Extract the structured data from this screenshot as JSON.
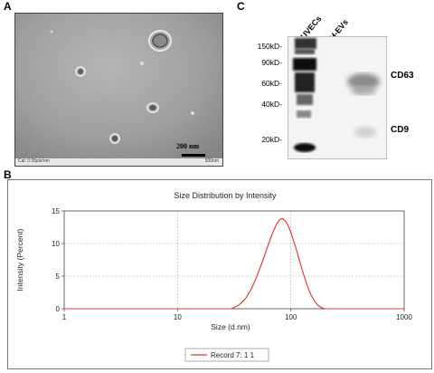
{
  "panels": {
    "a_letter": "A",
    "b_letter": "B",
    "c_letter": "C"
  },
  "micrograph": {
    "scale_bar_label": "200 nm",
    "footer_left": "Cal: 0.05pix/nm",
    "footer_right": "500nm"
  },
  "blot": {
    "lanes": [
      "HUVECs",
      "H-EVs"
    ],
    "markers": [
      "150kD-",
      "90kD-",
      "60kD-",
      "40kD-",
      "20kD-"
    ],
    "bands": [
      "CD63",
      "CD9"
    ]
  },
  "chart_data": {
    "type": "line",
    "title": "Size Distribution by Intensity",
    "xlabel": "Size (d.nm)",
    "ylabel": "Intensity (Percent)",
    "x_scale": "log",
    "xlim": [
      1,
      1000
    ],
    "ylim": [
      0,
      15
    ],
    "x_ticks": [
      "1",
      "10",
      "100",
      "1000"
    ],
    "y_ticks": [
      "0",
      "5",
      "10",
      "15"
    ],
    "grid": true,
    "legend_position": "bottom-center",
    "series": [
      {
        "name": "Record 7: 1 1",
        "color": "#e03030",
        "x": [
          30,
          35,
          40,
          45,
          50,
          55,
          60,
          65,
          70,
          75,
          80,
          85,
          90,
          95,
          100,
          110,
          120,
          130,
          140,
          150,
          160,
          170,
          180,
          190,
          200,
          220
        ],
        "y": [
          0,
          0.6,
          1.6,
          3.1,
          4.9,
          6.8,
          8.7,
          10.4,
          11.9,
          13.0,
          13.7,
          13.8,
          13.4,
          12.7,
          11.7,
          9.5,
          7.2,
          5.2,
          3.5,
          2.2,
          1.3,
          0.7,
          0.3,
          0.1,
          0,
          0
        ]
      }
    ]
  }
}
